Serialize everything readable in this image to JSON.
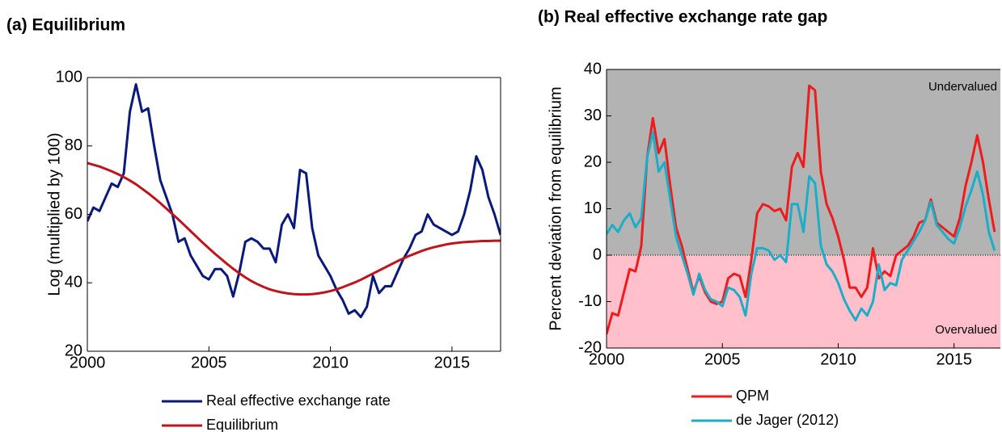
{
  "chart_data": [
    {
      "type": "line",
      "title": "(a) Equilibrium",
      "ylabel": "Log (multiplied by 100)",
      "x": [
        2000,
        2000.25,
        2000.5,
        2000.75,
        2001,
        2001.25,
        2001.5,
        2001.75,
        2002,
        2002.25,
        2002.5,
        2002.75,
        2003,
        2003.25,
        2003.5,
        2003.75,
        2004,
        2004.25,
        2004.5,
        2004.75,
        2005,
        2005.25,
        2005.5,
        2005.75,
        2006,
        2006.25,
        2006.5,
        2006.75,
        2007,
        2007.25,
        2007.5,
        2007.75,
        2008,
        2008.25,
        2008.5,
        2008.75,
        2009,
        2009.25,
        2009.5,
        2009.75,
        2010,
        2010.25,
        2010.5,
        2010.75,
        2011,
        2011.25,
        2011.5,
        2011.75,
        2012,
        2012.25,
        2012.5,
        2012.75,
        2013,
        2013.25,
        2013.5,
        2013.75,
        2014,
        2014.25,
        2014.5,
        2014.75,
        2015,
        2015.25,
        2015.5,
        2015.75,
        2016,
        2016.25,
        2016.5,
        2016.75,
        2017
      ],
      "series": [
        {
          "name": "Real effective exchange rate",
          "color": "#0a1a7a",
          "values": [
            58,
            62,
            61,
            65,
            69,
            68,
            72,
            90,
            98,
            90,
            91,
            80,
            70,
            65,
            60,
            52,
            53,
            48,
            45,
            42,
            41,
            44,
            44,
            42,
            36,
            43,
            52,
            53,
            52,
            50,
            50,
            46,
            57,
            60,
            56,
            73,
            72,
            56,
            48,
            45,
            42,
            38,
            35,
            31,
            32,
            30,
            33,
            42,
            37,
            39,
            39,
            43,
            47,
            50,
            54,
            55,
            60,
            57,
            56,
            55,
            54,
            55,
            60,
            67,
            77,
            73,
            65,
            60,
            54
          ]
        },
        {
          "name": "Equilibrium",
          "color": "#c0141c",
          "values": [
            75,
            74.5,
            74,
            73.3,
            72.6,
            71.8,
            70.9,
            69.9,
            68.8,
            67.5,
            66.2,
            64.8,
            63.3,
            61.7,
            60.1,
            58.5,
            56.8,
            55.1,
            53.4,
            51.7,
            50.1,
            48.5,
            47,
            45.5,
            44.1,
            42.8,
            41.6,
            40.5,
            39.6,
            38.8,
            38.1,
            37.6,
            37.2,
            36.9,
            36.7,
            36.6,
            36.6,
            36.7,
            36.9,
            37.2,
            37.6,
            38.1,
            38.7,
            39.4,
            40.1,
            40.9,
            41.8,
            42.7,
            43.6,
            44.5,
            45.4,
            46.3,
            47.1,
            47.9,
            48.6,
            49.3,
            49.9,
            50.4,
            50.8,
            51.2,
            51.5,
            51.7,
            51.9,
            52,
            52.1,
            52.2,
            52.2,
            52.3,
            52.3
          ]
        }
      ],
      "xlim": [
        2000,
        2017
      ],
      "xticks": [
        2000,
        2005,
        2010,
        2015
      ],
      "ylim": [
        20,
        100
      ],
      "yticks": [
        20,
        40,
        60,
        80,
        100
      ]
    },
    {
      "type": "line",
      "title": "(b) Real effective exchange rate gap",
      "ylabel": "Percent deviation from equilibrium",
      "annotations": [
        "Undervalued",
        "Overvalued"
      ],
      "shading": {
        "above_zero": "#b3b3b3",
        "below_zero": "#ffc0cb"
      },
      "x": [
        2000,
        2000.25,
        2000.5,
        2000.75,
        2001,
        2001.25,
        2001.5,
        2001.75,
        2002,
        2002.25,
        2002.5,
        2002.75,
        2003,
        2003.25,
        2003.5,
        2003.75,
        2004,
        2004.25,
        2004.5,
        2004.75,
        2005,
        2005.25,
        2005.5,
        2005.75,
        2006,
        2006.25,
        2006.5,
        2006.75,
        2007,
        2007.25,
        2007.5,
        2007.75,
        2008,
        2008.25,
        2008.5,
        2008.75,
        2009,
        2009.25,
        2009.5,
        2009.75,
        2010,
        2010.25,
        2010.5,
        2010.75,
        2011,
        2011.25,
        2011.5,
        2011.75,
        2012,
        2012.25,
        2012.5,
        2012.75,
        2013,
        2013.25,
        2013.5,
        2013.75,
        2014,
        2014.25,
        2014.5,
        2014.75,
        2015,
        2015.25,
        2015.5,
        2015.75,
        2016,
        2016.25,
        2016.5,
        2016.75
      ],
      "series": [
        {
          "name": "QPM",
          "color": "#ee1c1c",
          "values": [
            -17,
            -12.5,
            -13,
            -8,
            -3,
            -3.5,
            2,
            21,
            29.5,
            22,
            25,
            15,
            6,
            2,
            -3,
            -8,
            -4.5,
            -8,
            -10,
            -10.5,
            -10,
            -5,
            -4,
            -4.5,
            -9,
            -1,
            9,
            11,
            10.5,
            9.5,
            10,
            7.5,
            19,
            22,
            19,
            36.5,
            35.5,
            18,
            11,
            8,
            4,
            -1,
            -7,
            -7,
            -9,
            -7,
            1.5,
            -5,
            -3.5,
            -4.5,
            0,
            1,
            2,
            4,
            7,
            7.5,
            12,
            7,
            6,
            5,
            4,
            8,
            15,
            20,
            25.8,
            20,
            12,
            5
          ]
        },
        {
          "name": "de Jager (2012)",
          "color": "#1aaec8",
          "values": [
            4.5,
            6.5,
            5,
            7.5,
            9,
            6,
            8,
            21,
            26.5,
            18,
            20,
            12,
            4,
            0,
            -4,
            -8.5,
            -4,
            -7.5,
            -9.5,
            -10,
            -11,
            -7,
            -7.5,
            -9,
            -13,
            -4,
            1.5,
            1.5,
            1,
            -1,
            0,
            -1.5,
            11,
            11,
            5,
            17,
            15.5,
            2,
            -2,
            -3.5,
            -6,
            -9.5,
            -12,
            -14,
            -11.5,
            -13,
            -10,
            -2,
            -7.5,
            -6,
            -6.5,
            -1,
            1,
            3,
            5,
            7.5,
            11.5,
            6.5,
            5,
            3.5,
            2.5,
            6,
            10.5,
            14,
            18,
            13,
            5,
            1
          ]
        }
      ],
      "xlim": [
        2000,
        2017
      ],
      "xticks": [
        2000,
        2005,
        2010,
        2015
      ],
      "ylim": [
        -20,
        40
      ],
      "yticks": [
        -20,
        -10,
        0,
        10,
        20,
        30,
        40
      ]
    }
  ]
}
